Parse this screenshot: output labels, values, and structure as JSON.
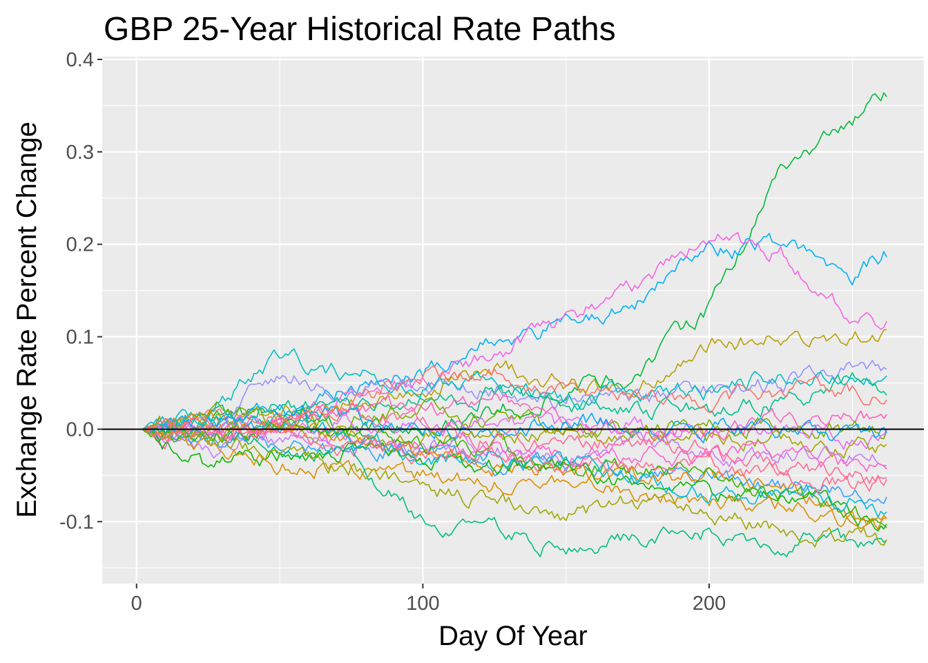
{
  "chart_data": {
    "type": "line",
    "title": "GBP 25-Year Historical Rate Paths",
    "xlabel": "Day Of Year",
    "ylabel": "Exchange Rate Percent Change",
    "xlim": [
      -12,
      275
    ],
    "ylim": [
      -0.167,
      0.403
    ],
    "x_ticks": [
      0,
      100,
      200
    ],
    "x_tick_labels": [
      "0",
      "100",
      "200"
    ],
    "y_ticks": [
      -0.1,
      0.0,
      0.1,
      0.2,
      0.3,
      0.4
    ],
    "y_tick_labels": [
      "-0.1",
      "0.0",
      "0.1",
      "0.2",
      "0.3",
      "0.4"
    ],
    "grid": true,
    "legend": "none",
    "hline": 0,
    "panel_background": "#ebebeb",
    "series_note": "25 paths from day 2 to day 262; values approximated at anchor days and joined by a jagged path",
    "anchor_days": [
      2,
      25,
      50,
      75,
      100,
      125,
      150,
      175,
      200,
      225,
      250,
      262
    ],
    "series": [
      {
        "color": "#00ba38",
        "values": [
          0,
          0.01,
          0.02,
          0.0,
          0.0,
          0.02,
          0.04,
          0.06,
          0.13,
          0.28,
          0.33,
          0.36
        ]
      },
      {
        "color": "#00b0f6",
        "values": [
          0,
          0.0,
          0.01,
          0.05,
          0.06,
          0.1,
          0.11,
          0.14,
          0.19,
          0.2,
          0.17,
          0.19
        ]
      },
      {
        "color": "#f564e3",
        "values": [
          0,
          0.0,
          0.01,
          0.04,
          0.05,
          0.08,
          0.12,
          0.15,
          0.21,
          0.19,
          0.12,
          0.115
        ]
      },
      {
        "color": "#b79f00",
        "values": [
          0,
          0.01,
          0.02,
          0.03,
          0.04,
          0.07,
          0.05,
          0.04,
          0.09,
          0.1,
          0.1,
          0.107
        ]
      },
      {
        "color": "#9590ff",
        "values": [
          0,
          0.0,
          0.06,
          0.04,
          0.05,
          0.04,
          0.03,
          0.03,
          0.04,
          0.05,
          0.07,
          0.065
        ]
      },
      {
        "color": "#00bfc4",
        "values": [
          0,
          0.02,
          0.08,
          0.06,
          0.05,
          0.05,
          0.03,
          0.04,
          0.04,
          0.06,
          0.06,
          0.06
        ]
      },
      {
        "color": "#00c08b",
        "values": [
          0,
          0.01,
          0.03,
          0.02,
          0.03,
          0.04,
          0.03,
          0.02,
          0.02,
          0.03,
          0.05,
          0.047
        ]
      },
      {
        "color": "#f8766d",
        "values": [
          0,
          0.01,
          0.01,
          0.03,
          0.06,
          0.06,
          0.04,
          0.03,
          0.03,
          0.04,
          0.04,
          0.03
        ]
      },
      {
        "color": "#ff62bc",
        "values": [
          0,
          -0.01,
          0.0,
          0.02,
          0.02,
          0.03,
          0.01,
          0.0,
          0.0,
          0.01,
          0.01,
          0.013
        ]
      },
      {
        "color": "#7cae00",
        "values": [
          0,
          0.02,
          0.01,
          0.01,
          0.02,
          0.01,
          0.0,
          0.0,
          0.01,
          0.0,
          0.0,
          0.0
        ]
      },
      {
        "color": "#e76bf3",
        "values": [
          0,
          0.0,
          0.0,
          0.01,
          0.0,
          0.01,
          0.0,
          0.0,
          0.0,
          0.0,
          -0.01,
          -0.01
        ]
      },
      {
        "color": "#00a9ff",
        "values": [
          0,
          0.01,
          0.02,
          0.01,
          0.0,
          0.0,
          0.01,
          0.0,
          0.0,
          0.0,
          -0.01,
          -0.005
        ]
      },
      {
        "color": "#a3a500",
        "values": [
          0,
          0.0,
          0.0,
          -0.01,
          -0.01,
          -0.01,
          -0.01,
          0.0,
          -0.01,
          -0.01,
          -0.02,
          -0.02
        ]
      },
      {
        "color": "#c77cff",
        "values": [
          0,
          -0.02,
          -0.01,
          -0.01,
          -0.02,
          -0.02,
          -0.03,
          -0.02,
          -0.03,
          -0.03,
          -0.03,
          -0.035
        ]
      },
      {
        "color": "#fd61d1",
        "values": [
          0,
          -0.01,
          0.0,
          -0.02,
          -0.02,
          -0.03,
          -0.03,
          -0.03,
          -0.03,
          -0.03,
          -0.04,
          -0.04
        ]
      },
      {
        "color": "#35a2ff",
        "values": [
          0,
          -0.01,
          -0.02,
          -0.02,
          -0.02,
          -0.04,
          -0.04,
          -0.05,
          -0.05,
          -0.06,
          -0.07,
          -0.07
        ]
      },
      {
        "color": "#e58700",
        "values": [
          0,
          0.01,
          0.0,
          -0.01,
          -0.03,
          -0.04,
          -0.05,
          -0.05,
          -0.05,
          -0.06,
          -0.09,
          -0.1
        ]
      },
      {
        "color": "#0cb702",
        "values": [
          0,
          -0.04,
          -0.03,
          -0.02,
          -0.03,
          -0.04,
          -0.04,
          -0.06,
          -0.07,
          -0.07,
          -0.09,
          -0.1
        ]
      },
      {
        "color": "#39b600",
        "values": [
          0,
          -0.01,
          0.0,
          0.0,
          -0.02,
          -0.02,
          -0.04,
          -0.04,
          -0.05,
          -0.07,
          -0.09,
          -0.095
        ]
      },
      {
        "color": "#d89000",
        "values": [
          0,
          -0.02,
          -0.04,
          -0.04,
          -0.05,
          -0.06,
          -0.06,
          -0.07,
          -0.08,
          -0.08,
          -0.1,
          -0.1
        ]
      },
      {
        "color": "#00bf7d",
        "values": [
          0,
          -0.01,
          -0.02,
          -0.03,
          -0.1,
          -0.11,
          -0.13,
          -0.12,
          -0.11,
          -0.12,
          -0.12,
          -0.12
        ]
      },
      {
        "color": "#9da700",
        "values": [
          0,
          -0.01,
          -0.03,
          -0.04,
          -0.06,
          -0.08,
          -0.09,
          -0.08,
          -0.09,
          -0.11,
          -0.12,
          -0.118
        ]
      },
      {
        "color": "#00bcd8",
        "values": [
          0,
          0.02,
          0.0,
          -0.01,
          -0.03,
          -0.03,
          -0.04,
          -0.05,
          -0.07,
          -0.07,
          -0.08,
          -0.09
        ]
      },
      {
        "color": "#ff6c91",
        "values": [
          0,
          0.0,
          -0.01,
          -0.02,
          -0.03,
          -0.03,
          -0.04,
          -0.04,
          -0.04,
          -0.05,
          -0.06,
          -0.058
        ]
      },
      {
        "color": "#ff6a98",
        "values": [
          0,
          0.0,
          0.01,
          0.02,
          0.0,
          -0.01,
          -0.02,
          -0.01,
          -0.02,
          -0.04,
          -0.05,
          -0.055
        ]
      }
    ]
  }
}
